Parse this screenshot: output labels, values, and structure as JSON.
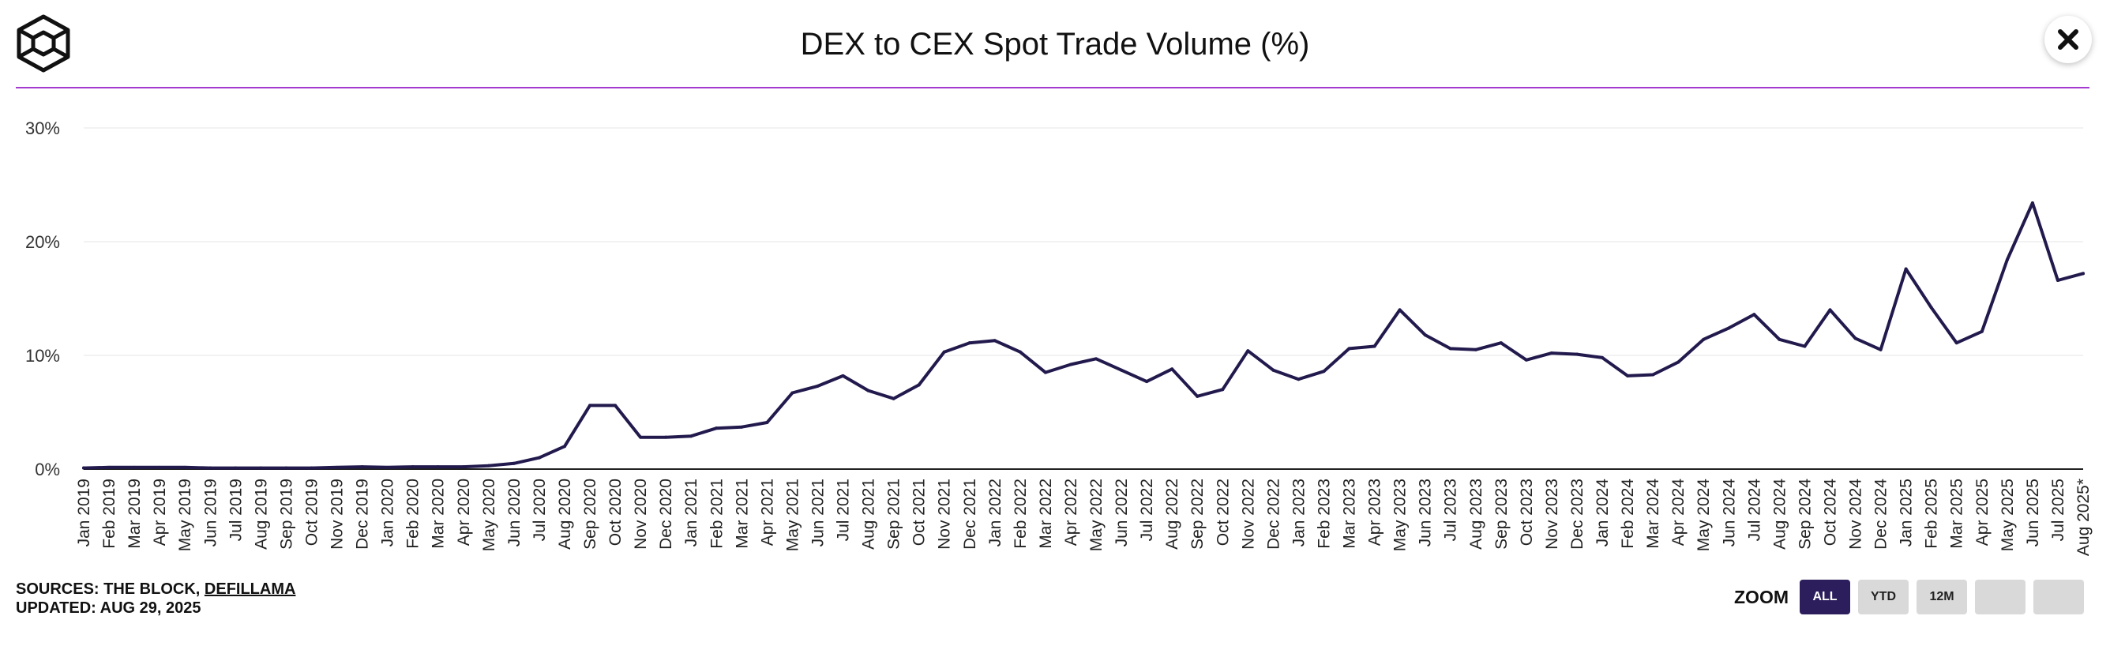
{
  "header": {
    "title": "DEX to CEX Spot Trade Volume (%)",
    "logo_icon": "block-cube-logo-icon",
    "close_icon": "close-icon",
    "divider_color": "#a43ad0"
  },
  "footer": {
    "sources_prefix": "SOURCES: THE BLOCK, ",
    "sources_link": "DEFILLAMA",
    "updated": "UPDATED: AUG 29, 2025"
  },
  "zoom": {
    "label": "ZOOM",
    "buttons": [
      {
        "label": "ALL",
        "active": true
      },
      {
        "label": "YTD",
        "active": false
      },
      {
        "label": "12M",
        "active": false
      },
      {
        "label": "",
        "active": false
      },
      {
        "label": "",
        "active": false
      }
    ],
    "active_color": "#2c1d5c"
  },
  "chart_data": {
    "type": "line",
    "title": "DEX to CEX Spot Trade Volume (%)",
    "xlabel": "",
    "ylabel": "",
    "ylim": [
      0,
      30
    ],
    "yticks": [
      0,
      10,
      20,
      30
    ],
    "ytick_labels": [
      "0%",
      "10%",
      "20%",
      "30%"
    ],
    "grid": true,
    "legend": "none",
    "line_color": "#221a4d",
    "categories": [
      "Jan 2019",
      "Feb 2019",
      "Mar 2019",
      "Apr 2019",
      "May 2019",
      "Jun 2019",
      "Jul 2019",
      "Aug 2019",
      "Sep 2019",
      "Oct 2019",
      "Nov 2019",
      "Dec 2019",
      "Jan 2020",
      "Feb 2020",
      "Mar 2020",
      "Apr 2020",
      "May 2020",
      "Jun 2020",
      "Jul 2020",
      "Aug 2020",
      "Sep 2020",
      "Oct 2020",
      "Nov 2020",
      "Dec 2020",
      "Jan 2021",
      "Feb 2021",
      "Mar 2021",
      "Apr 2021",
      "May 2021",
      "Jun 2021",
      "Jul 2021",
      "Aug 2021",
      "Sep 2021",
      "Oct 2021",
      "Nov 2021",
      "Dec 2021",
      "Jan 2022",
      "Feb 2022",
      "Mar 2022",
      "Apr 2022",
      "May 2022",
      "Jun 2022",
      "Jul 2022",
      "Aug 2022",
      "Sep 2022",
      "Oct 2022",
      "Nov 2022",
      "Dec 2022",
      "Jan 2023",
      "Feb 2023",
      "Mar 2023",
      "Apr 2023",
      "May 2023",
      "Jun 2023",
      "Jul 2023",
      "Aug 2023",
      "Sep 2023",
      "Oct 2023",
      "Nov 2023",
      "Dec 2023",
      "Jan 2024",
      "Feb 2024",
      "Mar 2024",
      "Apr 2024",
      "May 2024",
      "Jun 2024",
      "Jul 2024",
      "Aug 2024",
      "Sep 2024",
      "Oct 2024",
      "Nov 2024",
      "Dec 2024",
      "Jan 2025",
      "Feb 2025",
      "Mar 2025",
      "Apr 2025",
      "May 2025",
      "Jun 2025",
      "Jul 2025",
      "Aug 2025*"
    ],
    "series": [
      {
        "values": [
          0.1,
          0.15,
          0.15,
          0.15,
          0.15,
          0.1,
          0.1,
          0.1,
          0.1,
          0.1,
          0.15,
          0.2,
          0.15,
          0.2,
          0.2,
          0.2,
          0.3,
          0.5,
          1.0,
          2.0,
          5.6,
          5.6,
          2.8,
          2.8,
          2.9,
          3.6,
          3.7,
          4.1,
          6.7,
          7.3,
          8.2,
          6.9,
          6.2,
          7.4,
          10.3,
          11.1,
          11.3,
          10.3,
          8.5,
          9.2,
          9.7,
          8.7,
          7.7,
          8.8,
          6.4,
          7.0,
          10.4,
          8.7,
          7.9,
          8.6,
          10.6,
          10.8,
          14.0,
          11.8,
          10.6,
          10.5,
          11.1,
          9.6,
          10.2,
          10.1,
          9.8,
          8.2,
          8.3,
          9.4,
          11.4,
          12.4,
          13.6,
          11.4,
          10.8,
          14.0,
          11.5,
          10.5,
          17.6,
          14.2,
          11.1,
          12.1,
          18.4,
          23.4,
          16.6,
          17.2
        ]
      }
    ]
  }
}
